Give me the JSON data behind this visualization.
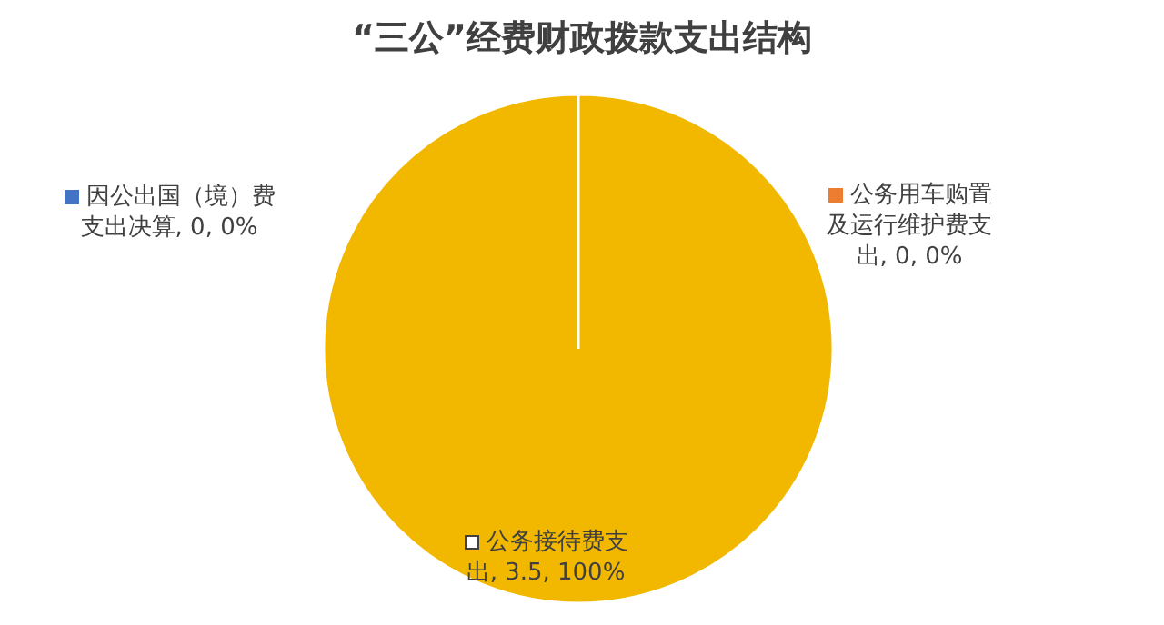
{
  "chart_data": {
    "type": "pie",
    "title": "“三公”经费财政拨款支出结构",
    "categories": [
      "因公出国（境）费支出决算",
      "公务用车购置及运行维护费支出",
      "公务接待费支出"
    ],
    "values": [
      0,
      0,
      3.5
    ],
    "colors": [
      "#4472c4",
      "#ed7d31",
      "#f2b800"
    ],
    "value_labels": [
      "0, 0%",
      "0, 0%",
      "3.5, 100%"
    ],
    "legend": "top"
  }
}
